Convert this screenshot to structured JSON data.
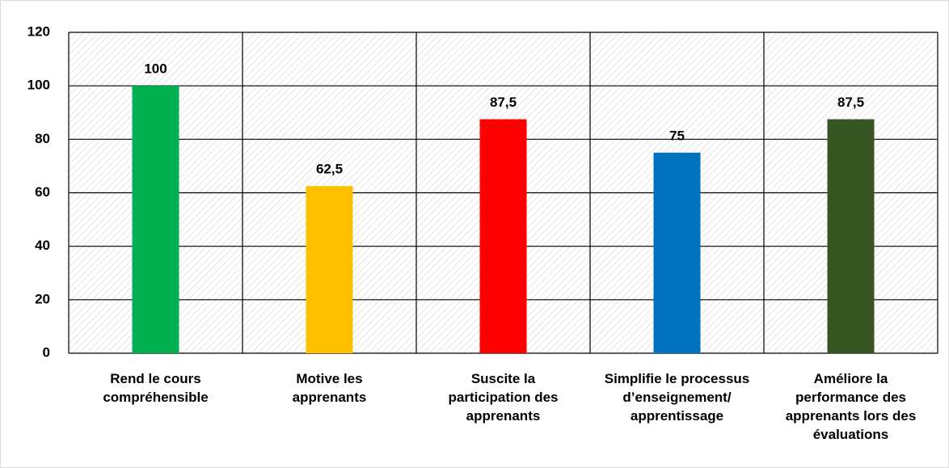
{
  "chart_data": {
    "type": "bar",
    "categories": [
      "Rend le cours\ncompréhensible",
      "Motive les\napprenants",
      "Suscite la\nparticipation des\napprenants",
      "Simplifie le processus\nd’enseignement/\napprentissage",
      "Améliore la\nperformance des\napprenants lors des\névaluations"
    ],
    "values": [
      100,
      62.5,
      87.5,
      75,
      87.5
    ],
    "value_labels": [
      "100",
      "62,5",
      "87,5",
      "75",
      "87,5"
    ],
    "colors": [
      "#00b050",
      "#ffc000",
      "#ff0000",
      "#0070c0",
      "#375623"
    ],
    "ylim": [
      0,
      120
    ],
    "yticks": [
      0,
      20,
      40,
      60,
      80,
      100,
      120
    ],
    "grid": true
  }
}
